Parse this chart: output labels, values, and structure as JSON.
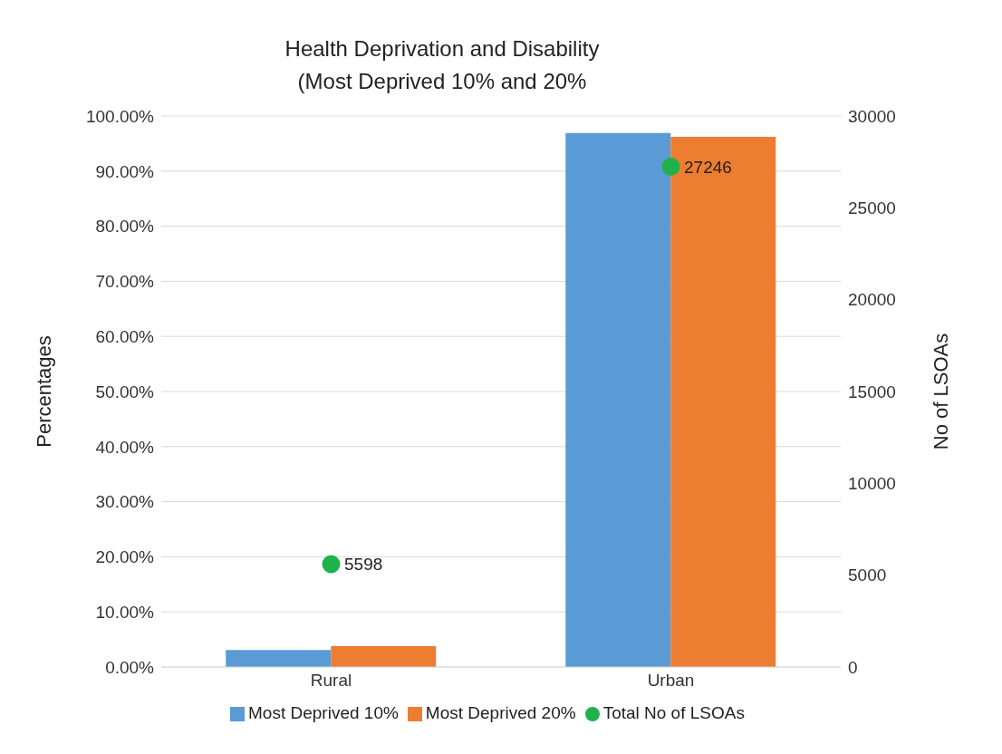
{
  "chart_data": {
    "type": "bar",
    "title": "Health Deprivation and Disability\n(Most Deprived 10% and 20%",
    "ylabel": "Percentages",
    "y2label": "No  of  LSOAs",
    "categories": [
      "Rural",
      "Urban"
    ],
    "series": [
      {
        "name": "Most Deprived 10%",
        "color": "#5b9bd5",
        "values": [
          3.1,
          96.9
        ]
      },
      {
        "name": "Most Deprived 20%",
        "color": "#ed7d31",
        "values": [
          3.8,
          96.2
        ]
      },
      {
        "name": "Total No of LSOAs",
        "type": "scatter",
        "axis": "y2",
        "color": "#1fb24a",
        "marker": "circle",
        "values": [
          5598,
          27246
        ],
        "value_labels": [
          "5598",
          "27246"
        ]
      }
    ],
    "ylim": [
      0,
      100
    ],
    "yticks": [
      {
        "value": 0,
        "label": "0.00%"
      },
      {
        "value": 10,
        "label": "10.00%"
      },
      {
        "value": 20,
        "label": "20.00%"
      },
      {
        "value": 30,
        "label": "30.00%"
      },
      {
        "value": 40,
        "label": "40.00%"
      },
      {
        "value": 50,
        "label": "50.00%"
      },
      {
        "value": 60,
        "label": "60.00%"
      },
      {
        "value": 70,
        "label": "70.00%"
      },
      {
        "value": 80,
        "label": "80.00%"
      },
      {
        "value": 90,
        "label": "90.00%"
      },
      {
        "value": 100,
        "label": "100.00%"
      }
    ],
    "y2lim": [
      0,
      30000
    ],
    "y2ticks": [
      0,
      5000,
      10000,
      15000,
      20000,
      25000,
      30000
    ],
    "grid": "y",
    "legend": "bottom"
  }
}
